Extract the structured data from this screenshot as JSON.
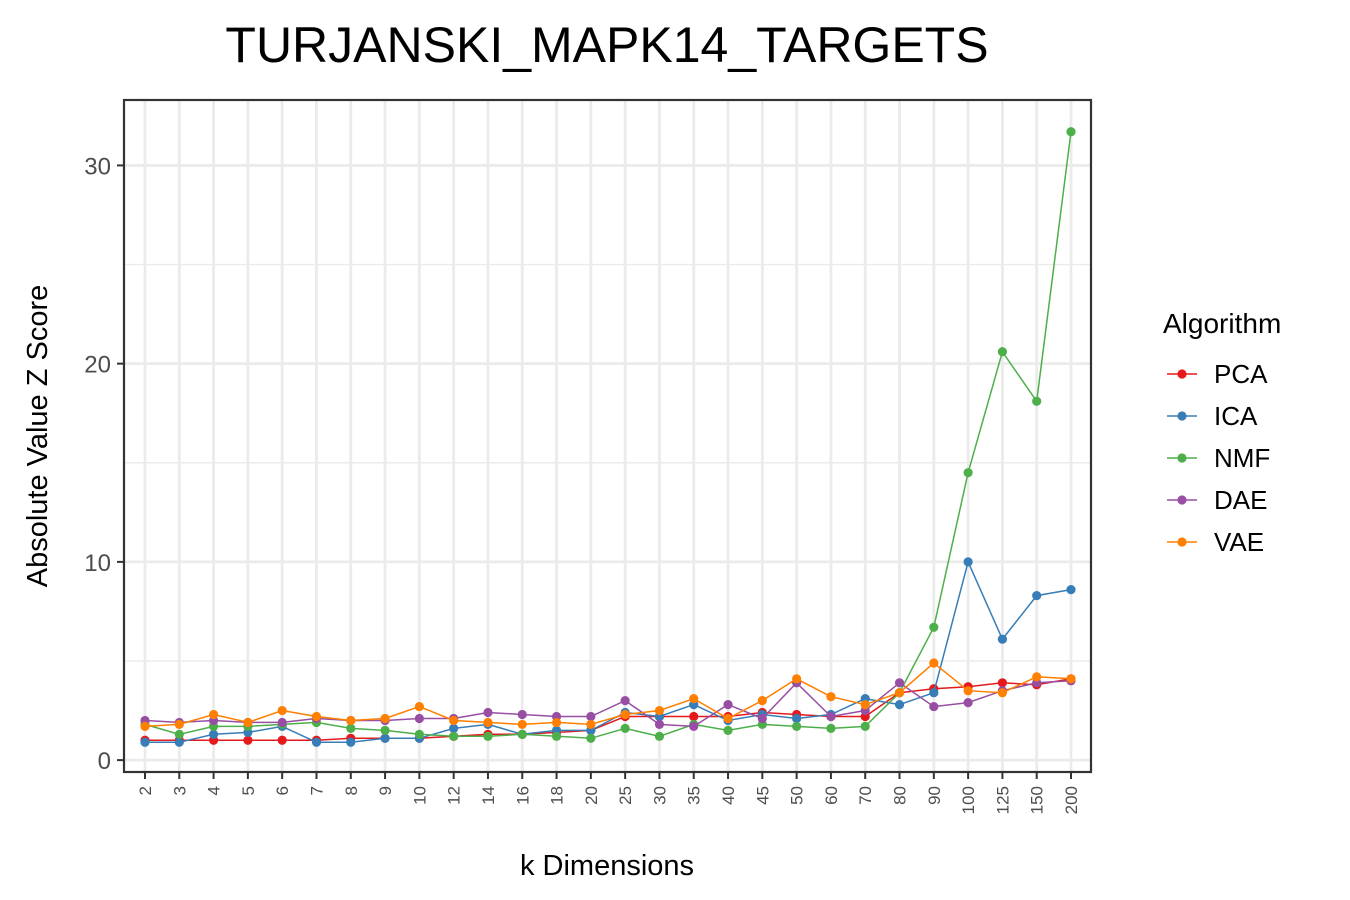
{
  "chart_data": {
    "type": "line",
    "title": "TURJANSKI_MAPK14_TARGETS",
    "xlabel": "k Dimensions",
    "ylabel": "Absolute Value Z Score",
    "x_scale": "categorical",
    "categories": [
      "2",
      "3",
      "4",
      "5",
      "6",
      "7",
      "8",
      "9",
      "10",
      "12",
      "14",
      "16",
      "18",
      "20",
      "25",
      "30",
      "35",
      "40",
      "45",
      "50",
      "60",
      "70",
      "80",
      "90",
      "100",
      "125",
      "150",
      "200"
    ],
    "ylim": [
      -0.6,
      33.3
    ],
    "yticks": [
      0,
      10,
      20,
      30
    ],
    "yticks_labels": [
      "0",
      "10",
      "20",
      "30"
    ],
    "grid": true,
    "legend": {
      "title": "Algorithm",
      "position": "right"
    },
    "series": [
      {
        "name": "PCA",
        "color": "#e41a1c",
        "values": [
          1.0,
          1.0,
          1.0,
          1.0,
          1.0,
          1.0,
          1.1,
          1.1,
          1.1,
          1.2,
          1.3,
          1.3,
          1.4,
          1.5,
          2.2,
          2.2,
          2.2,
          2.2,
          2.4,
          2.3,
          2.2,
          2.2,
          3.4,
          3.6,
          3.7,
          3.9,
          3.8,
          4.1
        ]
      },
      {
        "name": "ICA",
        "color": "#377eb8",
        "values": [
          0.9,
          0.9,
          1.3,
          1.4,
          1.7,
          0.9,
          0.9,
          1.1,
          1.1,
          1.6,
          1.8,
          1.3,
          1.5,
          1.5,
          2.4,
          2.2,
          2.8,
          2.0,
          2.3,
          2.1,
          2.3,
          3.1,
          2.8,
          3.4,
          10.0,
          6.1,
          8.3,
          8.6
        ]
      },
      {
        "name": "NMF",
        "color": "#4daf4a",
        "values": [
          1.8,
          1.3,
          1.7,
          1.7,
          1.8,
          1.9,
          1.6,
          1.5,
          1.3,
          1.2,
          1.2,
          1.3,
          1.2,
          1.1,
          1.6,
          1.2,
          1.8,
          1.5,
          1.8,
          1.7,
          1.6,
          1.7,
          3.4,
          6.7,
          14.5,
          20.6,
          18.1,
          31.7
        ]
      },
      {
        "name": "DAE",
        "color": "#984ea3",
        "values": [
          2.0,
          1.9,
          2.0,
          1.9,
          1.9,
          2.1,
          2.0,
          2.0,
          2.1,
          2.1,
          2.4,
          2.3,
          2.2,
          2.2,
          3.0,
          1.8,
          1.7,
          2.8,
          2.1,
          3.9,
          2.2,
          2.5,
          3.9,
          2.7,
          2.9,
          3.5,
          3.9,
          4.0
        ]
      },
      {
        "name": "VAE",
        "color": "#ff7f00",
        "values": [
          1.7,
          1.8,
          2.3,
          1.9,
          2.5,
          2.2,
          2.0,
          2.1,
          2.7,
          2.0,
          1.9,
          1.8,
          1.9,
          1.8,
          2.3,
          2.5,
          3.1,
          2.1,
          3.0,
          4.1,
          3.2,
          2.8,
          3.4,
          4.9,
          3.5,
          3.4,
          4.2,
          4.1
        ]
      }
    ]
  }
}
